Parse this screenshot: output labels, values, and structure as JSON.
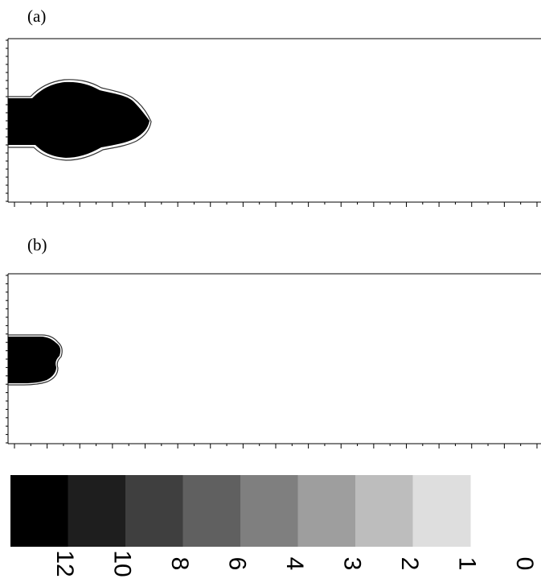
{
  "panels": [
    {
      "label": "(a)"
    },
    {
      "label": "(b)"
    }
  ],
  "colorbar": {
    "swatches": [
      "#000000",
      "#1e1e1e",
      "#3f3f3f",
      "#606060",
      "#7f7f7f",
      "#9e9e9e",
      "#bdbdbd",
      "#dedede"
    ],
    "labels": [
      "12",
      "10",
      "8",
      "6",
      "4",
      "3",
      "2",
      "1",
      "0"
    ],
    "label_orientation": "rotated 90° clockwise"
  }
}
